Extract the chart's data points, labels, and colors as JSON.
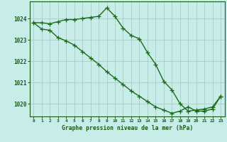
{
  "line1": [
    1023.8,
    1023.8,
    1023.75,
    1023.85,
    1023.95,
    1023.95,
    1024.0,
    1024.05,
    1024.1,
    1024.5,
    1024.1,
    1023.55,
    1023.2,
    1023.05,
    1022.4,
    1021.85,
    1021.05,
    1020.65,
    1020.0,
    1019.65,
    1019.7,
    1019.75,
    1019.85,
    1020.35
  ],
  "line2": [
    1023.8,
    1023.5,
    1023.45,
    1023.1,
    1022.95,
    1022.75,
    1022.45,
    1022.15,
    1021.85,
    1021.5,
    1021.2,
    1020.9,
    1020.6,
    1020.35,
    1020.1,
    1019.85,
    1019.7,
    1019.55,
    1019.65,
    1019.85,
    1019.65,
    1019.65,
    1019.75,
    1020.35
  ],
  "x": [
    0,
    1,
    2,
    3,
    4,
    5,
    6,
    7,
    8,
    9,
    10,
    11,
    12,
    13,
    14,
    15,
    16,
    17,
    18,
    19,
    20,
    21,
    22,
    23
  ],
  "ylim": [
    1019.4,
    1024.8
  ],
  "yticks": [
    1020,
    1021,
    1022,
    1023,
    1024
  ],
  "xticks": [
    0,
    1,
    2,
    3,
    4,
    5,
    6,
    7,
    8,
    9,
    10,
    11,
    12,
    13,
    14,
    15,
    16,
    17,
    18,
    19,
    20,
    21,
    22,
    23
  ],
  "xlabel": "Graphe pression niveau de la mer (hPa)",
  "line_color": "#1a6b1a",
  "bg_color": "#c8ece8",
  "grid_color": "#a8ccc8",
  "text_color": "#1a5a1a",
  "marker": "+",
  "markersize": 4,
  "linewidth": 1.0
}
